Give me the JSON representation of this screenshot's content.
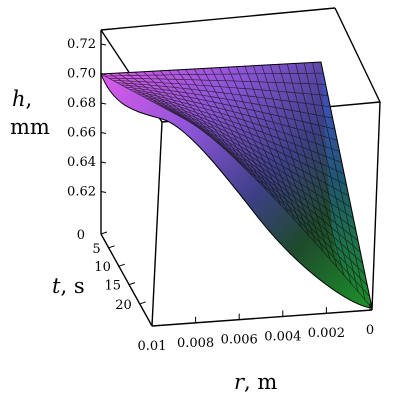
{
  "chart_data": {
    "type": "surface",
    "xlabel": {
      "var": "r",
      "unit": "m"
    },
    "ylabel": {
      "var": "t",
      "unit": "s"
    },
    "zlabel": {
      "var": "h",
      "unit": "mm"
    },
    "r_ticks": [
      "0.01",
      "0.008",
      "0.006",
      "0.004",
      "0.002",
      "0"
    ],
    "t_ticks": [
      "0",
      "5",
      "10",
      "15",
      "20"
    ],
    "h_ticks": [
      "0.72",
      "0.70",
      "0.68",
      "0.66",
      "0.64",
      "0.62"
    ],
    "r_range": [
      0,
      0.01
    ],
    "t_range": [
      0,
      22
    ],
    "h_range": [
      0.6,
      0.72
    ],
    "h_initial": 0.7,
    "h_min": 0.6,
    "grid": true,
    "colors": {
      "front_edge": "#d154e8",
      "back_edge": "#4a4ee0",
      "low_region": "#1f8a2a"
    }
  }
}
